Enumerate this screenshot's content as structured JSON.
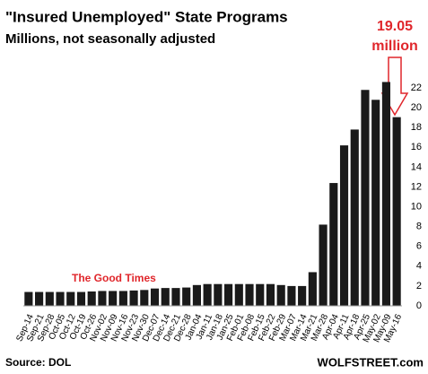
{
  "chart_data": {
    "type": "bar",
    "title": "\"Insured Unemployed\" State Programs",
    "subtitle": "Millions, not seasonally adjusted",
    "annotation": [
      "19.05",
      "million"
    ],
    "region_label": "The Good Times",
    "source": "Source: DOL",
    "credit": "WOLFSTREET.com",
    "categories": [
      "Sep-14",
      "Sep-21",
      "Sep-28",
      "Oct-05",
      "Oct-12",
      "Oct-19",
      "Oct-26",
      "Nov-02",
      "Nov-09",
      "Nov-16",
      "Nov-23",
      "Nov-30",
      "Dec-07",
      "Dec-14",
      "Dec-21",
      "Dec-28",
      "Jan-04",
      "Jan-11",
      "Jan-18",
      "Jan-25",
      "Feb-01",
      "Feb-08",
      "Feb-15",
      "Feb-22",
      "Feb-29",
      "Mar-07",
      "Mar-14",
      "Mar-21",
      "Mar-28",
      "Apr-04",
      "Apr-11",
      "Apr-18",
      "Apr-25",
      "May-02",
      "May-09",
      "May-16"
    ],
    "values": [
      1.4,
      1.4,
      1.4,
      1.4,
      1.4,
      1.4,
      1.45,
      1.5,
      1.5,
      1.5,
      1.55,
      1.6,
      1.75,
      1.8,
      1.8,
      1.85,
      2.1,
      2.2,
      2.2,
      2.2,
      2.2,
      2.2,
      2.2,
      2.2,
      2.1,
      2.0,
      2.0,
      3.4,
      8.2,
      12.4,
      16.2,
      17.8,
      21.8,
      20.8,
      22.6,
      19.05
    ],
    "color": "#1a1a1a",
    "ylim": [
      0,
      23
    ],
    "yticks": [
      0,
      2,
      4,
      6,
      8,
      10,
      12,
      14,
      16,
      18,
      20,
      22
    ],
    "grid": false
  }
}
